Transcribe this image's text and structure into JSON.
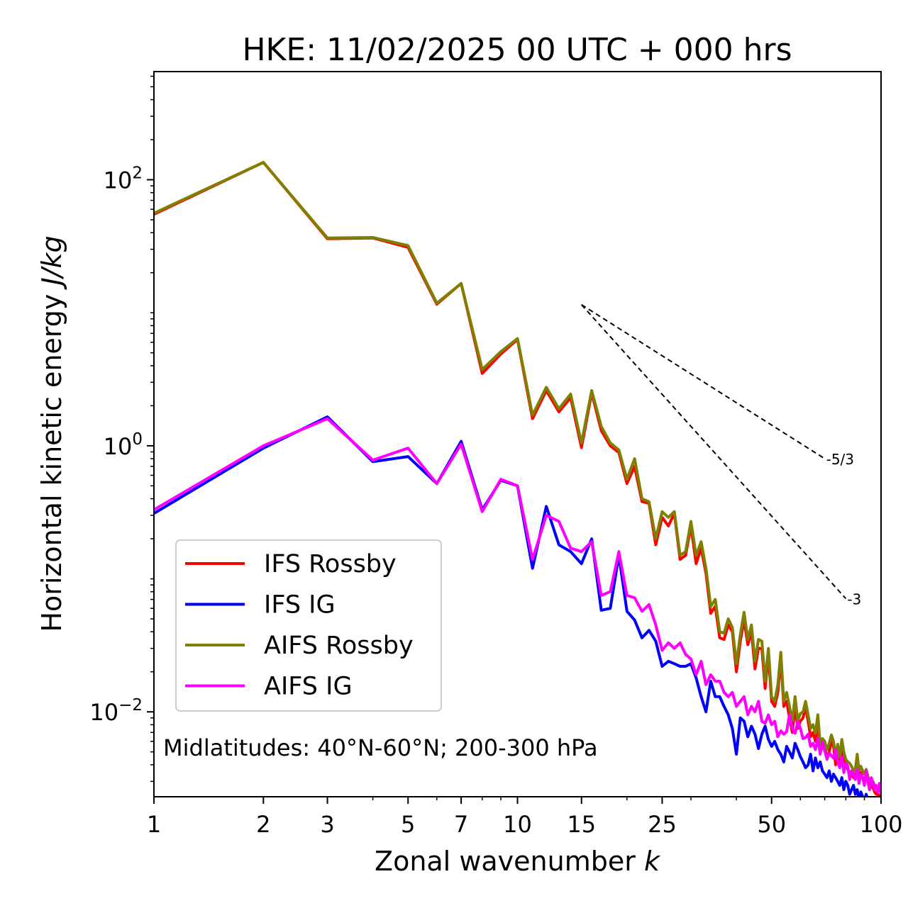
{
  "chart_data": {
    "type": "line",
    "title": "HKE: 11/02/2025 00 UTC + 000 hrs",
    "xlabel": "Zonal wavenumber",
    "xlabel_var": "k",
    "ylabel": "Horizontal kinetic energy",
    "ylabel_unit": "J/kg",
    "xscale": "log",
    "yscale": "log",
    "xlim": [
      1,
      100
    ],
    "ylim": [
      0.0023,
      650
    ],
    "x_ticks": [
      {
        "value": 1,
        "label": "1"
      },
      {
        "value": 2,
        "label": "2"
      },
      {
        "value": 3,
        "label": "3"
      },
      {
        "value": 5,
        "label": "5"
      },
      {
        "value": 7,
        "label": "7"
      },
      {
        "value": 10,
        "label": "10"
      },
      {
        "value": 15,
        "label": "15"
      },
      {
        "value": 25,
        "label": "25"
      },
      {
        "value": 50,
        "label": "50"
      },
      {
        "value": 100,
        "label": "100"
      }
    ],
    "y_ticks": [
      {
        "value": 100,
        "base": "10",
        "exp": "2"
      },
      {
        "value": 1,
        "base": "10",
        "exp": "0"
      },
      {
        "value": 0.01,
        "base": "10",
        "exp": "−2"
      }
    ],
    "annotation": "Midlatitudes: 40°N-60°N; 200-300 hPa",
    "legend_position": "lower-left",
    "grid": false,
    "reference_lines": [
      {
        "label": "-5/3",
        "slope": -1.6667,
        "x": [
          15,
          70
        ],
        "y": [
          11.5,
          0.8
        ]
      },
      {
        "label": "-3",
        "slope": -3,
        "x": [
          15,
          80
        ],
        "y": [
          11.5,
          0.071
        ]
      }
    ],
    "series": [
      {
        "name": "IFS Rossby",
        "color": "#ff0000",
        "x": [
          1,
          2,
          3,
          4,
          5,
          6,
          7,
          8,
          9,
          10,
          11,
          12,
          13,
          14,
          15,
          16,
          17,
          18,
          19,
          20,
          21,
          22,
          23,
          24,
          25,
          26,
          27,
          28,
          29,
          30,
          31,
          32,
          33,
          34,
          35,
          36,
          37,
          38,
          39,
          40,
          41,
          42,
          43,
          44,
          45,
          46,
          47,
          48,
          49,
          50,
          51,
          52,
          53,
          54,
          55,
          56,
          57,
          58,
          59,
          60,
          61,
          62,
          63,
          64,
          65,
          66,
          67,
          68,
          69,
          70,
          71,
          72,
          73,
          74,
          75,
          76,
          77,
          78,
          79,
          80,
          81,
          82,
          83,
          84,
          85,
          86,
          87,
          88,
          89,
          90,
          91,
          92,
          93,
          94,
          95,
          96,
          97,
          98,
          99,
          100
        ],
        "values": [
          55,
          135,
          36,
          36.5,
          31,
          11.6,
          16.6,
          3.5,
          4.9,
          6.3,
          1.6,
          2.6,
          1.8,
          2.3,
          0.97,
          2.5,
          1.3,
          1.0,
          0.89,
          0.52,
          0.7,
          0.38,
          0.37,
          0.18,
          0.29,
          0.25,
          0.31,
          0.14,
          0.15,
          0.25,
          0.13,
          0.17,
          0.11,
          0.055,
          0.062,
          0.036,
          0.035,
          0.045,
          0.04,
          0.02,
          0.034,
          0.049,
          0.032,
          0.04,
          0.021,
          0.03,
          0.03,
          0.015,
          0.027,
          0.012,
          0.011,
          0.014,
          0.025,
          0.011,
          0.012,
          0.009,
          0.007,
          0.011,
          0.0075,
          0.0085,
          0.009,
          0.011,
          0.0085,
          0.0065,
          0.007,
          0.006,
          0.0085,
          0.005,
          0.0055,
          0.0055,
          0.0045,
          0.005,
          0.006,
          0.0055,
          0.004,
          0.005,
          0.004,
          0.0055,
          0.0045,
          0.004,
          0.0037,
          0.0035,
          0.0034,
          0.0032,
          0.0033,
          0.0042,
          0.0033,
          0.0035,
          0.0032,
          0.003,
          0.0034,
          0.003,
          0.0026,
          0.0028,
          0.0027,
          0.0025,
          0.0024,
          0.0024,
          0.0023,
          0.0024
        ]
      },
      {
        "name": "IFS IG",
        "color": "#0000ff",
        "x": [
          1,
          2,
          3,
          4,
          5,
          6,
          7,
          8,
          9,
          10,
          11,
          12,
          13,
          14,
          15,
          16,
          17,
          18,
          19,
          20,
          21,
          22,
          23,
          24,
          25,
          26,
          27,
          28,
          29,
          30,
          31,
          32,
          33,
          34,
          35,
          36,
          37,
          38,
          39,
          40,
          41,
          42,
          43,
          44,
          45,
          46,
          47,
          48,
          49,
          50,
          51,
          52,
          53,
          54,
          55,
          56,
          57,
          58,
          59,
          60,
          61,
          62,
          63,
          64,
          65,
          66,
          67,
          68,
          69,
          70,
          71,
          72,
          73,
          74,
          75,
          76,
          77,
          78,
          79,
          80,
          81,
          82,
          83,
          84,
          85,
          86,
          87,
          88,
          89,
          90,
          91,
          92,
          93,
          94,
          95,
          96,
          97,
          98,
          99,
          100
        ],
        "values": [
          0.31,
          0.96,
          1.65,
          0.76,
          0.83,
          0.52,
          1.08,
          0.33,
          0.55,
          0.5,
          0.12,
          0.35,
          0.18,
          0.16,
          0.13,
          0.2,
          0.058,
          0.06,
          0.15,
          0.057,
          0.049,
          0.036,
          0.041,
          0.034,
          0.022,
          0.024,
          0.023,
          0.022,
          0.022,
          0.023,
          0.018,
          0.013,
          0.01,
          0.017,
          0.013,
          0.013,
          0.011,
          0.0095,
          0.0075,
          0.0048,
          0.009,
          0.0085,
          0.0065,
          0.0078,
          0.0068,
          0.0053,
          0.0068,
          0.0078,
          0.0062,
          0.0055,
          0.006,
          0.0052,
          0.0048,
          0.0042,
          0.0055,
          0.005,
          0.0045,
          0.0058,
          0.0052,
          0.0046,
          0.0042,
          0.0038,
          0.004,
          0.0048,
          0.0036,
          0.0045,
          0.0038,
          0.0042,
          0.0036,
          0.0034,
          0.0032,
          0.0036,
          0.003,
          0.0034,
          0.0032,
          0.003,
          0.0028,
          0.0032,
          0.0026,
          0.003,
          0.0028,
          0.0024,
          0.0026,
          0.0028,
          0.0024,
          0.0026,
          0.0022,
          0.0025,
          0.0023,
          0.0021,
          0.0024,
          0.0022,
          0.002,
          0.0022,
          0.0019,
          0.0021,
          0.0018,
          0.0019,
          0.0018,
          0.0017
        ]
      },
      {
        "name": "AIFS Rossby",
        "color": "#808000",
        "x": [
          1,
          2,
          3,
          4,
          5,
          6,
          7,
          8,
          9,
          10,
          11,
          12,
          13,
          14,
          15,
          16,
          17,
          18,
          19,
          20,
          21,
          22,
          23,
          24,
          25,
          26,
          27,
          28,
          29,
          30,
          31,
          32,
          33,
          34,
          35,
          36,
          37,
          38,
          39,
          40,
          41,
          42,
          43,
          44,
          45,
          46,
          47,
          48,
          49,
          50,
          51,
          52,
          53,
          54,
          55,
          56,
          57,
          58,
          59,
          60,
          61,
          62,
          63,
          64,
          65,
          66,
          67,
          68,
          69,
          70,
          71,
          72,
          73,
          74,
          75,
          76,
          77,
          78,
          79,
          80,
          81,
          82,
          83,
          84,
          85,
          86,
          87,
          88,
          89,
          90,
          91,
          92,
          93,
          94,
          95,
          96,
          97,
          98,
          99,
          100
        ],
        "values": [
          56,
          135,
          36.5,
          36.8,
          32,
          11.8,
          16.6,
          3.75,
          5.1,
          6.4,
          1.7,
          2.75,
          1.9,
          2.45,
          1.05,
          2.6,
          1.4,
          1.05,
          0.93,
          0.56,
          0.8,
          0.4,
          0.38,
          0.2,
          0.32,
          0.29,
          0.32,
          0.15,
          0.16,
          0.27,
          0.15,
          0.19,
          0.12,
          0.062,
          0.07,
          0.04,
          0.039,
          0.05,
          0.043,
          0.023,
          0.038,
          0.056,
          0.035,
          0.045,
          0.024,
          0.035,
          0.034,
          0.017,
          0.03,
          0.013,
          0.012,
          0.016,
          0.028,
          0.012,
          0.014,
          0.011,
          0.0085,
          0.013,
          0.0086,
          0.0097,
          0.01,
          0.012,
          0.0095,
          0.0075,
          0.008,
          0.0069,
          0.0095,
          0.0057,
          0.0063,
          0.006,
          0.0052,
          0.0058,
          0.0067,
          0.006,
          0.0047,
          0.0057,
          0.0046,
          0.0062,
          0.005,
          0.0044,
          0.0042,
          0.0041,
          0.0039,
          0.0036,
          0.0037,
          0.0048,
          0.0036,
          0.0039,
          0.0036,
          0.0034,
          0.0037,
          0.0033,
          0.0029,
          0.0031,
          0.003,
          0.0028,
          0.0027,
          0.0027,
          0.0026,
          0.0027
        ]
      },
      {
        "name": "AIFS IG",
        "color": "#ff00ff",
        "x": [
          1,
          2,
          3,
          4,
          5,
          6,
          7,
          8,
          9,
          10,
          11,
          12,
          13,
          14,
          15,
          16,
          17,
          18,
          19,
          20,
          21,
          22,
          23,
          24,
          25,
          26,
          27,
          28,
          29,
          30,
          31,
          32,
          33,
          34,
          35,
          36,
          37,
          38,
          39,
          40,
          41,
          42,
          43,
          44,
          45,
          46,
          47,
          48,
          49,
          50,
          51,
          52,
          53,
          54,
          55,
          56,
          57,
          58,
          59,
          60,
          61,
          62,
          63,
          64,
          65,
          66,
          67,
          68,
          69,
          70,
          71,
          72,
          73,
          74,
          75,
          76,
          77,
          78,
          79,
          80,
          81,
          82,
          83,
          84,
          85,
          86,
          87,
          88,
          89,
          90,
          91,
          92,
          93,
          94,
          95,
          96,
          97,
          98,
          99,
          100
        ],
        "values": [
          0.33,
          1.0,
          1.6,
          0.78,
          0.96,
          0.52,
          1.03,
          0.32,
          0.56,
          0.5,
          0.14,
          0.3,
          0.27,
          0.17,
          0.16,
          0.19,
          0.075,
          0.08,
          0.16,
          0.075,
          0.072,
          0.057,
          0.064,
          0.045,
          0.029,
          0.033,
          0.03,
          0.033,
          0.027,
          0.025,
          0.019,
          0.024,
          0.016,
          0.019,
          0.017,
          0.017,
          0.014,
          0.013,
          0.014,
          0.011,
          0.012,
          0.013,
          0.0095,
          0.011,
          0.01,
          0.012,
          0.0085,
          0.0082,
          0.0095,
          0.008,
          0.0085,
          0.0065,
          0.0072,
          0.0068,
          0.0071,
          0.0095,
          0.0075,
          0.0069,
          0.0085,
          0.0075,
          0.0063,
          0.0064,
          0.0068,
          0.0055,
          0.0058,
          0.0052,
          0.0063,
          0.0048,
          0.0059,
          0.0051,
          0.0044,
          0.0049,
          0.0047,
          0.0045,
          0.0052,
          0.0042,
          0.0038,
          0.0046,
          0.0035,
          0.0041,
          0.0039,
          0.0031,
          0.0036,
          0.0034,
          0.0031,
          0.0037,
          0.0029,
          0.0034,
          0.0032,
          0.0028,
          0.0036,
          0.0031,
          0.0026,
          0.0032,
          0.0029,
          0.0026,
          0.0028,
          0.0025,
          0.0029,
          0.0024
        ]
      }
    ]
  }
}
